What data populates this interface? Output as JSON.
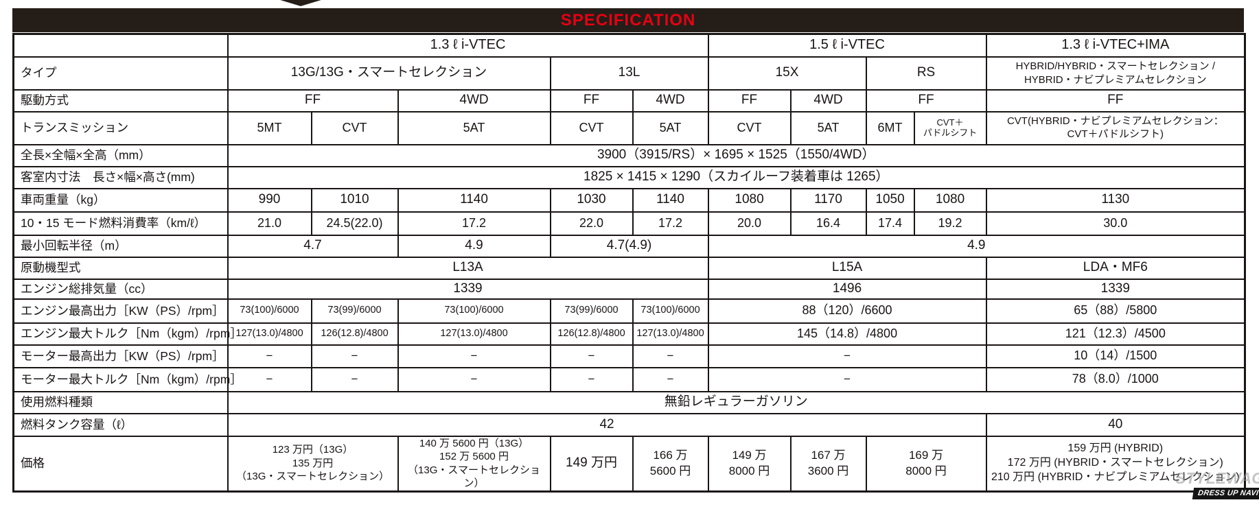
{
  "header": {
    "title": "SPECIFICATION",
    "title_color": "#e60012",
    "bar_color": "#241d18"
  },
  "watermark": {
    "brand": "STYLEWAGON",
    "badge": "DRESS UP NAVI"
  },
  "table": {
    "rows": [
      {
        "label": "",
        "cells": [
          {
            "text": "1.3 ℓ i-VTEC",
            "span": 5
          },
          {
            "text": "1.5 ℓ i-VTEC",
            "span": 4
          },
          {
            "text": "1.3 ℓ i-VTEC+IMA",
            "span": 1
          }
        ]
      },
      {
        "label": "タイプ",
        "cells": [
          {
            "text": "13G/13G・スマートセレクション",
            "span": 3
          },
          {
            "text": "13L",
            "span": 2
          },
          {
            "text": "15X",
            "span": 2
          },
          {
            "text": "RS",
            "span": 2
          },
          {
            "text": "HYBRID/HYBRID・スマートセレクション /\nHYBRID・ナビプレミアムセレクション",
            "span": 1
          }
        ]
      },
      {
        "label": "駆動方式",
        "cells": [
          {
            "text": "FF",
            "span": 2
          },
          {
            "text": "4WD",
            "span": 1
          },
          {
            "text": "FF",
            "span": 1
          },
          {
            "text": "4WD",
            "span": 1
          },
          {
            "text": "FF",
            "span": 1
          },
          {
            "text": "4WD",
            "span": 1
          },
          {
            "text": "FF",
            "span": 2
          },
          {
            "text": "FF",
            "span": 1
          }
        ]
      },
      {
        "label": "トランスミッション",
        "cells": [
          {
            "text": "5MT",
            "span": 1
          },
          {
            "text": "CVT",
            "span": 1
          },
          {
            "text": "5AT",
            "span": 1
          },
          {
            "text": "CVT",
            "span": 1
          },
          {
            "text": "5AT",
            "span": 1
          },
          {
            "text": "CVT",
            "span": 1
          },
          {
            "text": "5AT",
            "span": 1
          },
          {
            "text": "6MT",
            "span": 1
          },
          {
            "text": "CVT＋\nパドルシフト",
            "span": 1
          },
          {
            "text": "CVT(HYBRID・ナビプレミアムセレクション：\nCVT＋パドルシフト)",
            "span": 1
          }
        ]
      },
      {
        "label": "全長×全幅×全高（mm）",
        "cells": [
          {
            "text": "3900（3915/RS）× 1695 × 1525（1550/4WD）",
            "span": 10
          }
        ]
      },
      {
        "label": "客室内寸法　長さ×幅×高さ(mm)",
        "cells": [
          {
            "text": "1825 × 1415 × 1290（スカイルーフ装着車は 1265）",
            "span": 10
          }
        ]
      },
      {
        "label": "車両重量（kg）",
        "cells": [
          {
            "text": "990",
            "span": 1
          },
          {
            "text": "1010",
            "span": 1
          },
          {
            "text": "1140",
            "span": 1
          },
          {
            "text": "1030",
            "span": 1
          },
          {
            "text": "1140",
            "span": 1
          },
          {
            "text": "1080",
            "span": 1
          },
          {
            "text": "1170",
            "span": 1
          },
          {
            "text": "1050",
            "span": 1
          },
          {
            "text": "1080",
            "span": 1
          },
          {
            "text": "1130",
            "span": 1
          }
        ]
      },
      {
        "label": "10・15 モード燃料消費率（km/ℓ）",
        "cells": [
          {
            "text": "21.0",
            "span": 1
          },
          {
            "text": "24.5(22.0)",
            "span": 1
          },
          {
            "text": "17.2",
            "span": 1
          },
          {
            "text": "22.0",
            "span": 1
          },
          {
            "text": "17.2",
            "span": 1
          },
          {
            "text": "20.0",
            "span": 1
          },
          {
            "text": "16.4",
            "span": 1
          },
          {
            "text": "17.4",
            "span": 1
          },
          {
            "text": "19.2",
            "span": 1
          },
          {
            "text": "30.0",
            "span": 1
          }
        ]
      },
      {
        "label": "最小回転半径（m）",
        "cells": [
          {
            "text": "4.7",
            "span": 2
          },
          {
            "text": "4.9",
            "span": 1
          },
          {
            "text": "4.7(4.9)",
            "span": 2
          },
          {
            "text": "4.9",
            "span": 5
          }
        ]
      },
      {
        "label": "原動機型式",
        "cells": [
          {
            "text": "L13A",
            "span": 5
          },
          {
            "text": "L15A",
            "span": 4
          },
          {
            "text": "LDA・MF6",
            "span": 1
          }
        ]
      },
      {
        "label": "エンジン総排気量（cc）",
        "cells": [
          {
            "text": "1339",
            "span": 5
          },
          {
            "text": "1496",
            "span": 4
          },
          {
            "text": "1339",
            "span": 1
          }
        ]
      },
      {
        "label": "エンジン最高出力［KW（PS）/rpm］",
        "cells": [
          {
            "text": "73(100)/6000",
            "span": 1
          },
          {
            "text": "73(99)/6000",
            "span": 1
          },
          {
            "text": "73(100)/6000",
            "span": 1
          },
          {
            "text": "73(99)/6000",
            "span": 1
          },
          {
            "text": "73(100)/6000",
            "span": 1
          },
          {
            "text": "88（120）/6600",
            "span": 4
          },
          {
            "text": "65（88）/5800",
            "span": 1
          }
        ]
      },
      {
        "label": "エンジン最大トルク［Nm（kgm）/rpm］",
        "cells": [
          {
            "text": "127(13.0)/4800",
            "span": 1
          },
          {
            "text": "126(12.8)/4800",
            "span": 1
          },
          {
            "text": "127(13.0)/4800",
            "span": 1
          },
          {
            "text": "126(12.8)/4800",
            "span": 1
          },
          {
            "text": "127(13.0)/4800",
            "span": 1
          },
          {
            "text": "145（14.8）/4800",
            "span": 4
          },
          {
            "text": "121（12.3）/4500",
            "span": 1
          }
        ]
      },
      {
        "label": "モーター最高出力［KW（PS）/rpm］",
        "cells": [
          {
            "text": "−",
            "span": 1
          },
          {
            "text": "−",
            "span": 1
          },
          {
            "text": "−",
            "span": 1
          },
          {
            "text": "−",
            "span": 1
          },
          {
            "text": "−",
            "span": 1
          },
          {
            "text": "−",
            "span": 4
          },
          {
            "text": "10（14）/1500",
            "span": 1
          }
        ]
      },
      {
        "label": "モーター最大トルク［Nm（kgm）/rpm］",
        "cells": [
          {
            "text": "−",
            "span": 1
          },
          {
            "text": "−",
            "span": 1
          },
          {
            "text": "−",
            "span": 1
          },
          {
            "text": "−",
            "span": 1
          },
          {
            "text": "−",
            "span": 1
          },
          {
            "text": "−",
            "span": 4
          },
          {
            "text": "78（8.0）/1000",
            "span": 1
          }
        ]
      },
      {
        "label": "使用燃料種類",
        "cells": [
          {
            "text": "無鉛レギュラーガソリン",
            "span": 10
          }
        ]
      },
      {
        "label": "燃料タンク容量（ℓ）",
        "cells": [
          {
            "text": "42",
            "span": 9
          },
          {
            "text": "40",
            "span": 1
          }
        ]
      },
      {
        "label": "価格",
        "cells": [
          {
            "text": "123 万円（13G）\n135 万円\n（13G・スマートセレクション）",
            "span": 2
          },
          {
            "text": "140 万 5600 円（13G）\n152 万 5600 円\n（13G・スマートセレクション）",
            "span": 1
          },
          {
            "text": "149 万円",
            "span": 1
          },
          {
            "text": "166 万\n5600 円",
            "span": 1
          },
          {
            "text": "149 万\n8000 円",
            "span": 1
          },
          {
            "text": "167 万\n3600 円",
            "span": 1
          },
          {
            "text": "169 万\n8000 円",
            "span": 2
          },
          {
            "text": "159 万円 (HYBRID)\n172 万円 (HYBRID・スマートセレクション)\n210 万円 (HYBRID・ナビプレミアムセレクション)",
            "span": 1
          }
        ]
      }
    ]
  }
}
